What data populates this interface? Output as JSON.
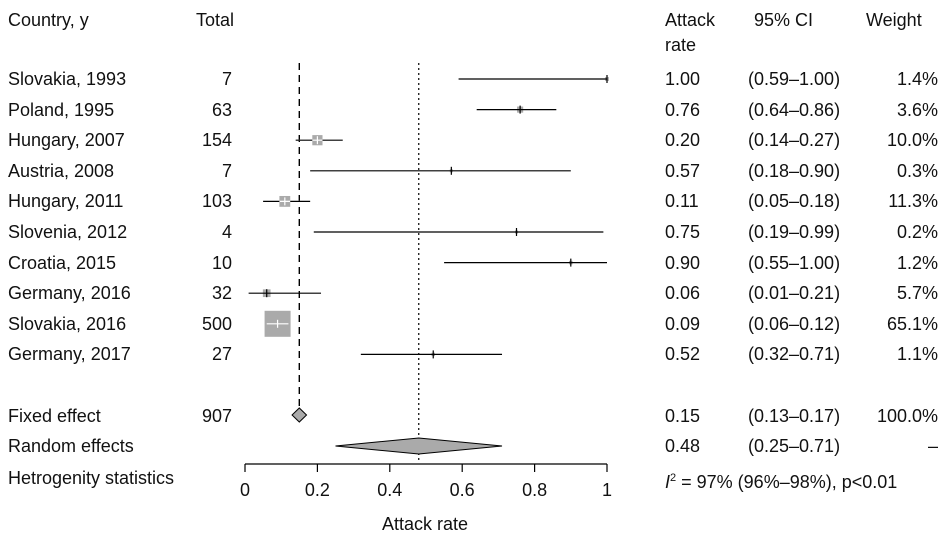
{
  "chart_data": {
    "type": "forest",
    "headers": {
      "country": "Country, y",
      "total": "Total",
      "rate_line1": "Attack",
      "rate_line2": "rate",
      "ci": "95% CI",
      "weight": "Weight"
    },
    "studies": [
      {
        "label": "Slovakia, 1993",
        "total": "7",
        "rate": 1.0,
        "ci": [
          0.59,
          1.0
        ],
        "rate_text": "1.00",
        "ci_text": "(0.59–1.00)",
        "weight_text": "1.4%",
        "weight": 1.4
      },
      {
        "label": "Poland, 1995",
        "total": "63",
        "rate": 0.76,
        "ci": [
          0.64,
          0.86
        ],
        "rate_text": "0.76",
        "ci_text": "(0.64–0.86)",
        "weight_text": "3.6%",
        "weight": 3.6
      },
      {
        "label": "Hungary, 2007",
        "total": "154",
        "rate": 0.2,
        "ci": [
          0.14,
          0.27
        ],
        "rate_text": "0.20",
        "ci_text": "(0.14–0.27)",
        "weight_text": "10.0%",
        "weight": 10.0
      },
      {
        "label": "Austria, 2008",
        "total": "7",
        "rate": 0.57,
        "ci": [
          0.18,
          0.9
        ],
        "rate_text": "0.57",
        "ci_text": "(0.18–0.90)",
        "weight_text": "0.3%",
        "weight": 0.3
      },
      {
        "label": "Hungary, 2011",
        "total": "103",
        "rate": 0.11,
        "ci": [
          0.05,
          0.18
        ],
        "rate_text": "0.11",
        "ci_text": "(0.05–0.18)",
        "weight_text": "11.3%",
        "weight": 11.3
      },
      {
        "label": "Slovenia, 2012",
        "total": "4",
        "rate": 0.75,
        "ci": [
          0.19,
          0.99
        ],
        "rate_text": "0.75",
        "ci_text": "(0.19–0.99)",
        "weight_text": "0.2%",
        "weight": 0.2
      },
      {
        "label": "Croatia, 2015",
        "total": "10",
        "rate": 0.9,
        "ci": [
          0.55,
          1.0
        ],
        "rate_text": "0.90",
        "ci_text": "(0.55–1.00)",
        "weight_text": "1.2%",
        "weight": 1.2
      },
      {
        "label": "Germany, 2016",
        "total": "32",
        "rate": 0.06,
        "ci": [
          0.01,
          0.21
        ],
        "rate_text": "0.06",
        "ci_text": "(0.01–0.21)",
        "weight_text": "5.7%",
        "weight": 5.7
      },
      {
        "label": "Slovakia, 2016",
        "total": "500",
        "rate": 0.09,
        "ci": [
          0.06,
          0.12
        ],
        "rate_text": "0.09",
        "ci_text": "(0.06–0.12)",
        "weight_text": "65.1%",
        "weight": 65.1
      },
      {
        "label": "Germany, 2017",
        "total": "27",
        "rate": 0.52,
        "ci": [
          0.32,
          0.71
        ],
        "rate_text": "0.52",
        "ci_text": "(0.32–0.71)",
        "weight_text": "1.1%",
        "weight": 1.1
      }
    ],
    "fixed": {
      "label": "Fixed effect",
      "total": "907",
      "rate": 0.15,
      "ci": [
        0.13,
        0.17
      ],
      "rate_text": "0.15",
      "ci_text": "(0.13–0.17)",
      "weight_text": "100.0%"
    },
    "random": {
      "label": "Random effects",
      "rate": 0.48,
      "ci": [
        0.25,
        0.71
      ],
      "rate_text": "0.48",
      "ci_text": "(0.25–0.71)",
      "weight_text": "–"
    },
    "heterogeneity": {
      "label": "Hetrogenity statistics",
      "i2_symbol": "I",
      "i2_superscript": "2",
      "text": " = 97% (96%–98%), p<0.01"
    },
    "xaxis": {
      "label": "Attack rate",
      "range": [
        0,
        1
      ],
      "ticks": [
        0,
        0.2,
        0.4,
        0.6,
        0.8,
        1
      ],
      "tick_labels": [
        "0",
        "0.2",
        "0.4",
        "0.6",
        "0.8",
        "1"
      ]
    },
    "colors": {
      "marker": "#aaaaaa",
      "line": "#000000",
      "diamond": "#aaaaaa"
    }
  }
}
